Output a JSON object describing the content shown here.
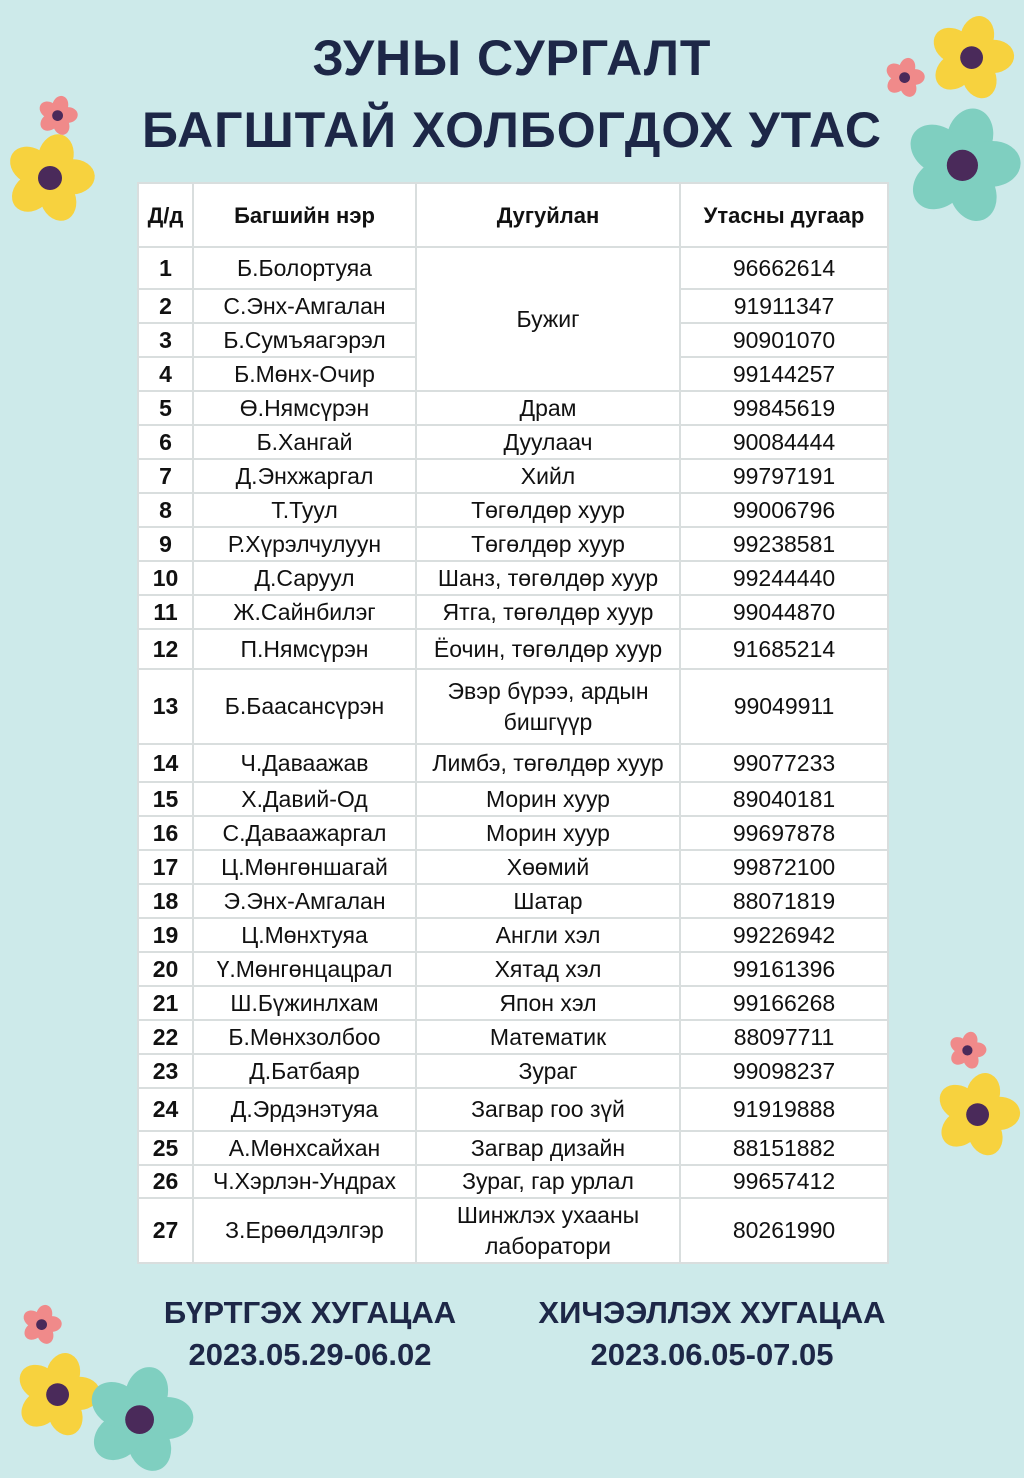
{
  "title": {
    "line1": "ЗУНЫ СУРГАЛТ",
    "line2": "БАГШТАЙ ХОЛБОГДОХ УТАС"
  },
  "table": {
    "headers": [
      "Д/д",
      "Багшийн нэр",
      "Дугуйлан",
      "Утасны дугаар"
    ],
    "rows": [
      {
        "no": "1",
        "name": "Б.Болортуяа",
        "club": "Бужиг",
        "phone": "96662614"
      },
      {
        "no": "2",
        "name": "С.Энх-Амгалан",
        "club": "Бужиг",
        "phone": "91911347"
      },
      {
        "no": "3",
        "name": "Б.Сумъяагэрэл",
        "club": "Бужиг",
        "phone": "90901070"
      },
      {
        "no": "4",
        "name": "Б.Мөнх-Очир",
        "club": "Бужиг",
        "phone": "99144257"
      },
      {
        "no": "5",
        "name": "Ө.Нямсүрэн",
        "club": "Драм",
        "phone": "99845619"
      },
      {
        "no": "6",
        "name": "Б.Хангай",
        "club": "Дуулаач",
        "phone": "90084444"
      },
      {
        "no": "7",
        "name": "Д.Энхжаргал",
        "club": "Хийл",
        "phone": "99797191"
      },
      {
        "no": "8",
        "name": "Т.Туул",
        "club": "Төгөлдөр хуур",
        "phone": "99006796"
      },
      {
        "no": "9",
        "name": "Р.Хүрэлчулуун",
        "club": "Төгөлдөр хуур",
        "phone": "99238581"
      },
      {
        "no": "10",
        "name": "Д.Саруул",
        "club": "Шанз, төгөлдөр хуур",
        "phone": "99244440"
      },
      {
        "no": "11",
        "name": "Ж.Сайнбилэг",
        "club": "Ятга, төгөлдөр хуур",
        "phone": "99044870"
      },
      {
        "no": "12",
        "name": "П.Нямсүрэн",
        "club": "Ёочин, төгөлдөр хуур",
        "phone": "91685214"
      },
      {
        "no": "13",
        "name": "Б.Баасансүрэн",
        "club": "Эвэр бүрээ, ардын бишгүүр",
        "phone": "99049911"
      },
      {
        "no": "14",
        "name": "Ч.Даваажав",
        "club": "Лимбэ, төгөлдөр хуур",
        "phone": "99077233"
      },
      {
        "no": "15",
        "name": "Х.Давий-Од",
        "club": "Морин хуур",
        "phone": "89040181"
      },
      {
        "no": "16",
        "name": "С.Даваажаргал",
        "club": "Морин хуур",
        "phone": "99697878"
      },
      {
        "no": "17",
        "name": "Ц.Мөнгөншагай",
        "club": "Хөөмий",
        "phone": "99872100"
      },
      {
        "no": "18",
        "name": "Э.Энх-Амгалан",
        "club": "Шатар",
        "phone": "88071819"
      },
      {
        "no": "19",
        "name": "Ц.Мөнхтуяа",
        "club": "Англи хэл",
        "phone": "99226942"
      },
      {
        "no": "20",
        "name": "Ү.Мөнгөнцацрал",
        "club": "Хятад хэл",
        "phone": "99161396"
      },
      {
        "no": "21",
        "name": "Ш.Бүжинлхам",
        "club": "Япон хэл",
        "phone": "99166268"
      },
      {
        "no": "22",
        "name": "Б.Мөнхзолбоо",
        "club": "Математик",
        "phone": "88097711"
      },
      {
        "no": "23",
        "name": "Д.Батбаяр",
        "club": "Зураг",
        "phone": "99098237"
      },
      {
        "no": "24",
        "name": "Д.Эрдэнэтуяа",
        "club": "Загвар гоо зүй",
        "phone": "91919888"
      },
      {
        "no": "25",
        "name": "А.Мөнхсайхан",
        "club": "Загвар дизайн",
        "phone": "88151882"
      },
      {
        "no": "26",
        "name": "Ч.Хэрлэн-Ундрах",
        "club": "Зураг, гар урлал",
        "phone": "99657412"
      },
      {
        "no": "27",
        "name": "З.Ерөөлдэлгэр",
        "club": "Шинжлэх ухааны лаборатори",
        "phone": "80261990"
      }
    ]
  },
  "footer": {
    "registration_label": "БҮРТГЭХ ХУГАЦАА",
    "registration_dates": "2023.05.29-06.02",
    "classes_label": "ХИЧЭЭЛЛЭХ ХУГАЦАА",
    "classes_dates": "2023.06.05-07.05"
  },
  "colors": {
    "background": "#cdeaea",
    "title": "#1d2747",
    "flower_yellow": "#f7d23e",
    "flower_teal": "#7fcfc0",
    "flower_pink": "#f08a8a",
    "flower_center": "#4a2a5a"
  },
  "decorations": [
    "flower-icon"
  ]
}
